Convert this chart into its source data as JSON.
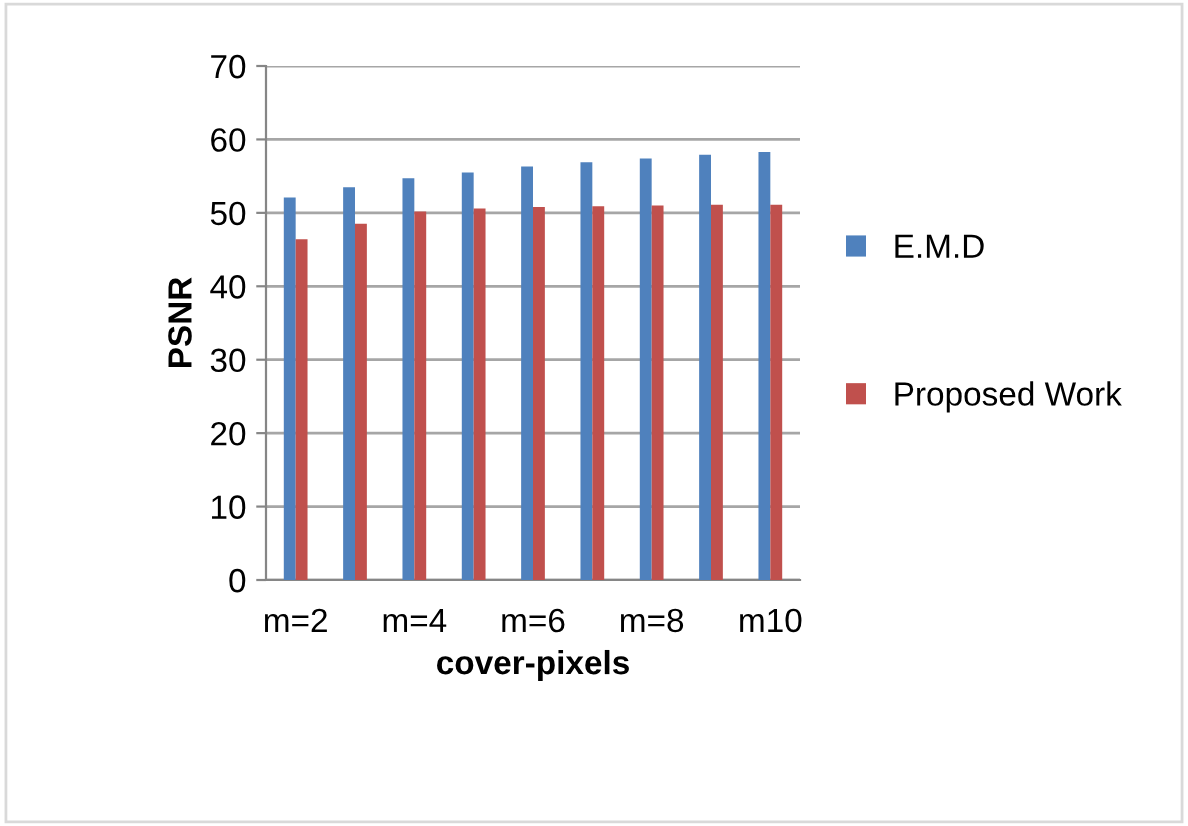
{
  "chart_data": {
    "type": "bar",
    "xlabel": "cover-pixels",
    "ylabel": "PSNR",
    "categories": [
      "m=2",
      null,
      "m=4",
      null,
      "m=6",
      null,
      "m=8",
      null,
      "m10"
    ],
    "series": [
      {
        "name": "E.M.D",
        "color": "#4f81bd",
        "values": [
          52.1,
          53.5,
          54.7,
          55.5,
          56.3,
          56.9,
          57.4,
          57.9,
          58.3
        ]
      },
      {
        "name": "Proposed Work",
        "color": "#c0504d",
        "values": [
          46.4,
          48.5,
          50.2,
          50.6,
          50.8,
          50.9,
          51.0,
          51.1,
          51.1
        ]
      }
    ],
    "ylim": [
      0,
      70
    ],
    "yticks": [
      0,
      10,
      20,
      30,
      40,
      50,
      60,
      70
    ],
    "grid": "y",
    "legend": "right"
  }
}
